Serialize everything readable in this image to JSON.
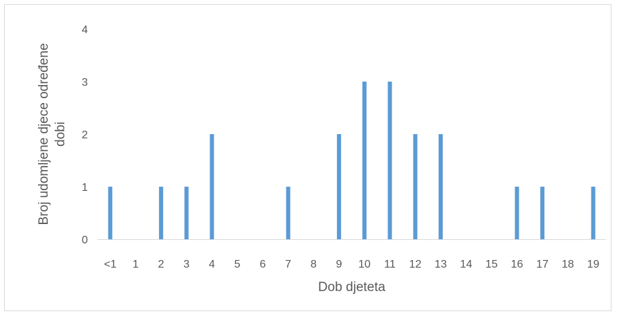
{
  "chart_data": {
    "type": "bar",
    "title": "",
    "xlabel": "Dob djeteta",
    "ylabel_lines": [
      "Broj udomljene djece određene",
      "dobi"
    ],
    "categories": [
      "<1",
      "1",
      "2",
      "3",
      "4",
      "5",
      "6",
      "7",
      "8",
      "9",
      "10",
      "11",
      "12",
      "13",
      "14",
      "15",
      "16",
      "17",
      "18",
      "19"
    ],
    "values": [
      1,
      0,
      1,
      1,
      2,
      0,
      0,
      1,
      0,
      2,
      3,
      3,
      2,
      2,
      0,
      0,
      1,
      1,
      0,
      1
    ],
    "ylim": [
      0,
      4
    ],
    "yticks": [
      "0",
      "1",
      "2",
      "3",
      "4"
    ],
    "grid": false,
    "legend": "none",
    "bar_color": "#5b9bd5",
    "axis_color": "#d9d9d9",
    "text_color": "#595959"
  }
}
